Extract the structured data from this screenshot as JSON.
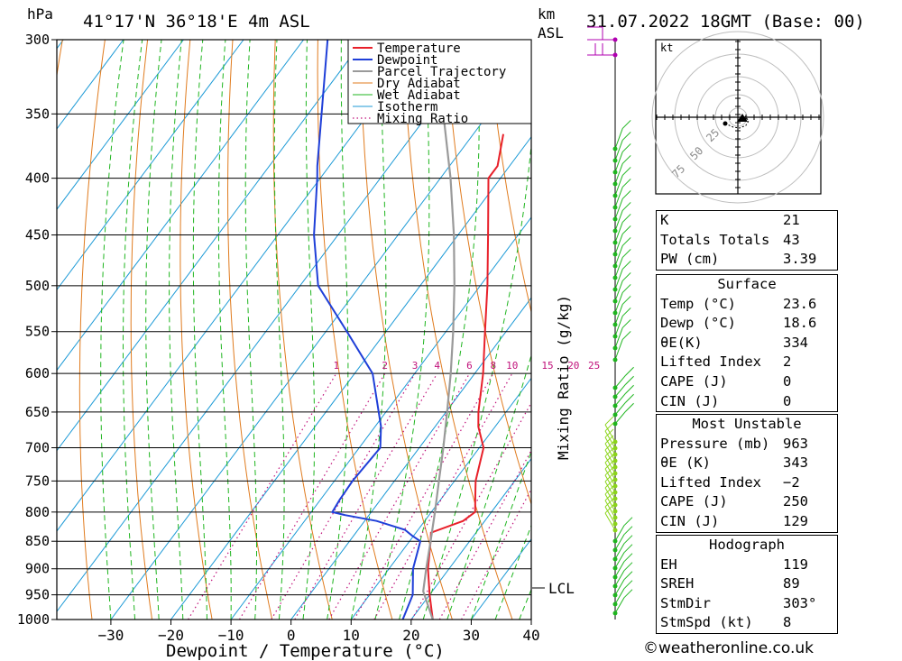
{
  "header": {
    "location": "41°17'N 36°18'E 4m ASL",
    "pressure_unit": "hPa",
    "height_unit": "km",
    "height_unit_sub": "ASL",
    "datetime": "31.07.2022 18GMT (Base: 00)"
  },
  "chart_data": {
    "type": "line",
    "xlabel": "Dewpoint / Temperature (°C)",
    "ylabel": "hPa",
    "x_ticks": [
      -30,
      -20,
      -10,
      0,
      10,
      20,
      30,
      40
    ],
    "x_tick_labels": [
      "−30",
      "−20",
      "−10",
      "0",
      "10",
      "20",
      "30",
      "40"
    ],
    "y_ticks": [
      300,
      350,
      400,
      450,
      500,
      550,
      600,
      650,
      700,
      750,
      800,
      850,
      900,
      950,
      1000
    ],
    "xlim_at_1000hPa": [
      -39,
      40
    ],
    "ylim": [
      1000,
      300
    ],
    "y_scale": "log",
    "grid": true,
    "legend_position": "top-right",
    "legend": [
      "Temperature",
      "Dewpoint",
      "Parcel Trajectory",
      "Dry Adiabat",
      "Wet Adiabat",
      "Isotherm",
      "Mixing Ratio"
    ],
    "mixing_ratio_axis_label": "Mixing Ratio (g/kg)",
    "mixing_ratio_labels": [
      "1",
      "2",
      "3",
      "4",
      "6",
      "8",
      "10",
      "15",
      "20",
      "25"
    ],
    "lcl_label": "LCL",
    "lcl_pressure": 943,
    "series": [
      {
        "name": "Temperature",
        "color": "#e8202a",
        "points": [
          [
            1000,
            23.6
          ],
          [
            950,
            20.0
          ],
          [
            900,
            16.5
          ],
          [
            850,
            13.5
          ],
          [
            835,
            12.5
          ],
          [
            815,
            16.4
          ],
          [
            800,
            17.3
          ],
          [
            780,
            15.8
          ],
          [
            750,
            13.5
          ],
          [
            700,
            10.7
          ],
          [
            670,
            7.2
          ],
          [
            650,
            5.4
          ],
          [
            600,
            1.4
          ],
          [
            550,
            -3.5
          ],
          [
            500,
            -8.8
          ],
          [
            450,
            -15.0
          ],
          [
            400,
            -22.0
          ],
          [
            390,
            -22.0
          ],
          [
            365,
            -25.0
          ]
        ]
      },
      {
        "name": "Dewpoint",
        "color": "#1f3fd8",
        "points": [
          [
            1000,
            18.6
          ],
          [
            950,
            17.2
          ],
          [
            900,
            14.0
          ],
          [
            850,
            11.8
          ],
          [
            840,
            9.7
          ],
          [
            830,
            7.8
          ],
          [
            815,
            2.0
          ],
          [
            805,
            -4.0
          ],
          [
            800,
            -6.5
          ],
          [
            780,
            -6.8
          ],
          [
            750,
            -7.0
          ],
          [
            700,
            -6.5
          ],
          [
            670,
            -9.0
          ],
          [
            600,
            -17.0
          ],
          [
            550,
            -26.5
          ],
          [
            500,
            -37.0
          ],
          [
            450,
            -44.0
          ],
          [
            400,
            -50.5
          ],
          [
            390,
            -52.0
          ],
          [
            300,
            -66.0
          ]
        ]
      },
      {
        "name": "Parcel Trajectory",
        "color": "#9a9a9a",
        "points": [
          [
            1000,
            23.6
          ],
          [
            943,
            18.5
          ],
          [
            900,
            16.2
          ],
          [
            850,
            13.5
          ],
          [
            800,
            10.6
          ],
          [
            750,
            7.4
          ],
          [
            700,
            4.0
          ],
          [
            650,
            0.2
          ],
          [
            600,
            -4.0
          ],
          [
            550,
            -8.8
          ],
          [
            500,
            -14.3
          ],
          [
            450,
            -20.7
          ],
          [
            400,
            -28.3
          ],
          [
            350,
            -37.5
          ],
          [
            300,
            -48.5
          ]
        ]
      }
    ]
  },
  "hodograph": {
    "unit": "kt",
    "ring_labels": [
      "25",
      "50",
      "75"
    ]
  },
  "stats": {
    "general": [
      {
        "label": "K",
        "value": "21"
      },
      {
        "label": "Totals Totals",
        "value": "43"
      },
      {
        "label": "PW (cm)",
        "value": "3.39"
      }
    ],
    "surface": {
      "title": "Surface",
      "rows": [
        {
          "label": "Temp (°C)",
          "value": "23.6"
        },
        {
          "label": "Dewp (°C)",
          "value": "18.6"
        },
        {
          "label": "θE(K)",
          "value": "334"
        },
        {
          "label": "Lifted Index",
          "value": "2"
        },
        {
          "label": "CAPE (J)",
          "value": "0"
        },
        {
          "label": "CIN (J)",
          "value": "0"
        }
      ]
    },
    "most_unstable": {
      "title": "Most Unstable",
      "rows": [
        {
          "label": "Pressure (mb)",
          "value": "963"
        },
        {
          "label": "θE (K)",
          "value": "343"
        },
        {
          "label": "Lifted Index",
          "value": "−2"
        },
        {
          "label": "CAPE (J)",
          "value": "250"
        },
        {
          "label": "CIN (J)",
          "value": "129"
        }
      ]
    },
    "hodograph": {
      "title": "Hodograph",
      "rows": [
        {
          "label": "EH",
          "value": "119"
        },
        {
          "label": "SREH",
          "value": "89"
        },
        {
          "label": "StmDir",
          "value": "303°"
        },
        {
          "label": "StmSpd (kt)",
          "value": "8"
        }
      ]
    }
  },
  "credit": "©weatheronline.co.uk"
}
